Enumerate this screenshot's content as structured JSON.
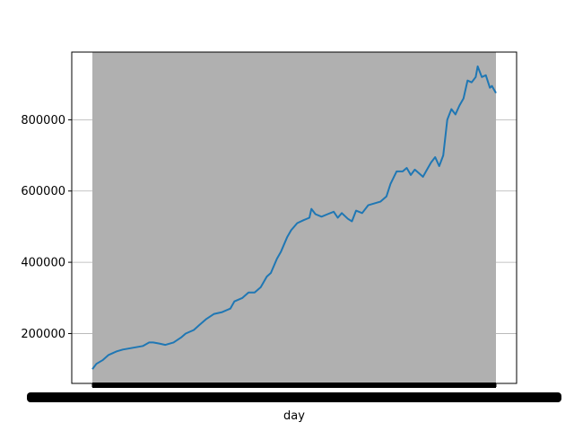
{
  "chart_data": {
    "type": "line",
    "title": "",
    "xlabel": "day",
    "ylabel": "",
    "ylim": [
      60000,
      990000
    ],
    "yticks": [
      200000,
      400000,
      600000,
      800000
    ],
    "ytick_labels": [
      "200000",
      "400000",
      "600000",
      "800000"
    ],
    "grid": "y",
    "x_tick_labels_legible": false,
    "shaded_span": {
      "from_index": 0,
      "to_index": 199,
      "color": "#b0b0b0"
    },
    "series": [
      {
        "color": "#1f77b4",
        "points": [
          [
            0,
            100000
          ],
          [
            2,
            115000
          ],
          [
            5,
            125000
          ],
          [
            8,
            140000
          ],
          [
            12,
            150000
          ],
          [
            15,
            155000
          ],
          [
            20,
            160000
          ],
          [
            25,
            165000
          ],
          [
            28,
            175000
          ],
          [
            30,
            175000
          ],
          [
            33,
            172000
          ],
          [
            36,
            168000
          ],
          [
            40,
            175000
          ],
          [
            44,
            190000
          ],
          [
            46,
            200000
          ],
          [
            50,
            210000
          ],
          [
            53,
            225000
          ],
          [
            56,
            240000
          ],
          [
            60,
            255000
          ],
          [
            64,
            260000
          ],
          [
            68,
            270000
          ],
          [
            70,
            290000
          ],
          [
            74,
            300000
          ],
          [
            77,
            315000
          ],
          [
            80,
            315000
          ],
          [
            83,
            330000
          ],
          [
            86,
            360000
          ],
          [
            88,
            370000
          ],
          [
            91,
            410000
          ],
          [
            93,
            430000
          ],
          [
            96,
            470000
          ],
          [
            98,
            490000
          ],
          [
            101,
            510000
          ],
          [
            104,
            518000
          ],
          [
            107,
            525000
          ],
          [
            108,
            550000
          ],
          [
            110,
            535000
          ],
          [
            113,
            528000
          ],
          [
            116,
            535000
          ],
          [
            119,
            542000
          ],
          [
            121,
            525000
          ],
          [
            123,
            538000
          ],
          [
            126,
            522000
          ],
          [
            128,
            515000
          ],
          [
            130,
            545000
          ],
          [
            133,
            538000
          ],
          [
            136,
            560000
          ],
          [
            139,
            565000
          ],
          [
            142,
            570000
          ],
          [
            145,
            585000
          ],
          [
            147,
            620000
          ],
          [
            150,
            655000
          ],
          [
            153,
            655000
          ],
          [
            155,
            665000
          ],
          [
            157,
            645000
          ],
          [
            159,
            660000
          ],
          [
            161,
            650000
          ],
          [
            163,
            640000
          ],
          [
            165,
            660000
          ],
          [
            167,
            680000
          ],
          [
            169,
            695000
          ],
          [
            171,
            670000
          ],
          [
            173,
            700000
          ],
          [
            175,
            800000
          ],
          [
            177,
            830000
          ],
          [
            179,
            815000
          ],
          [
            181,
            840000
          ],
          [
            183,
            860000
          ],
          [
            185,
            910000
          ],
          [
            187,
            905000
          ],
          [
            189,
            920000
          ],
          [
            190,
            950000
          ],
          [
            192,
            920000
          ],
          [
            194,
            925000
          ],
          [
            196,
            890000
          ],
          [
            197,
            895000
          ],
          [
            199,
            875000
          ]
        ]
      }
    ]
  }
}
